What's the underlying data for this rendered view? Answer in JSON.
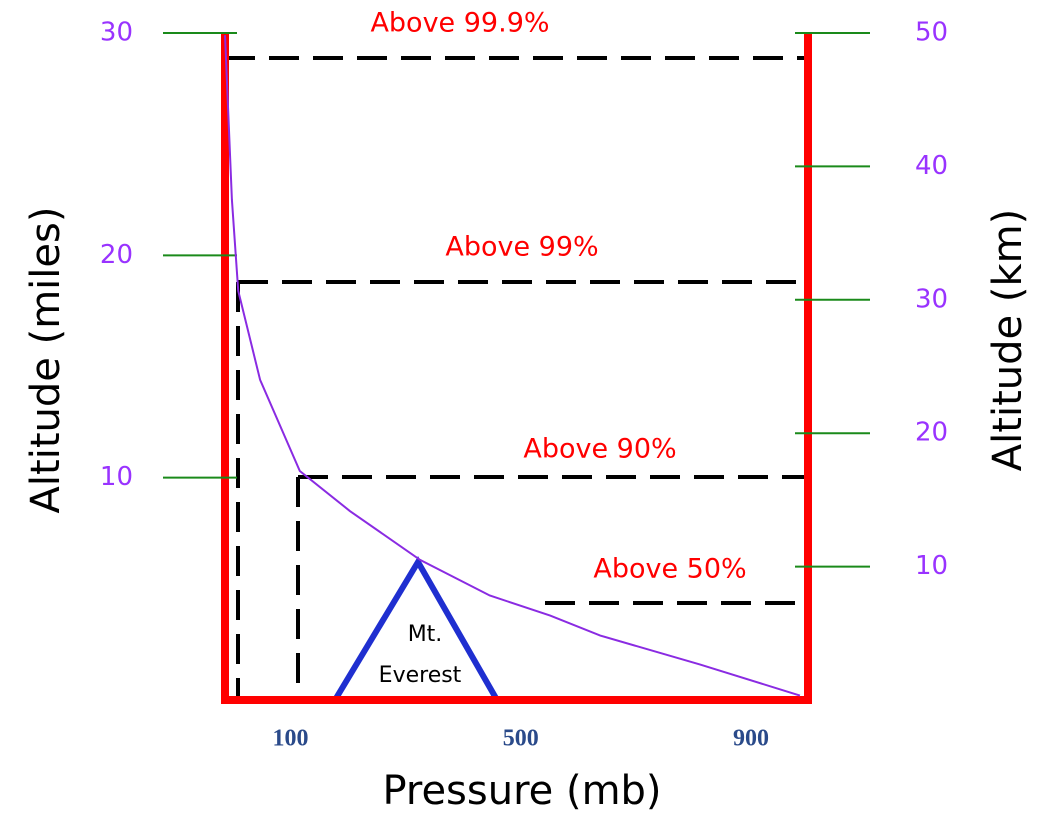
{
  "chart_data": {
    "type": "line",
    "x_label": "Pressure (mb)",
    "y_label": "Altitude (miles)",
    "y2_label": "Altitude (km)",
    "xlim": [
      0,
      1013
    ],
    "xticks": [
      100,
      500,
      900
    ],
    "ylim": [
      0,
      30
    ],
    "yticks": [
      10,
      20,
      30
    ],
    "y2lim": [
      0,
      50
    ],
    "y2ticks": [
      10,
      20,
      30,
      40,
      50
    ],
    "x": [
      0,
      12,
      23,
      61,
      130,
      217,
      339,
      460,
      565,
      652,
      825,
      999
    ],
    "series": [
      {
        "color": "#8a2be2",
        "values": [
          29.9,
          22.5,
          18.4,
          14.4,
          10.3,
          8.5,
          6.3,
          4.7,
          3.8,
          2.9,
          1.6,
          0.2
        ]
      }
    ],
    "annotations": [
      "Above 99.9%",
      "Above 99%",
      "Above 90%",
      "Above 50%",
      "Mt.",
      "Everest"
    ]
  }
}
